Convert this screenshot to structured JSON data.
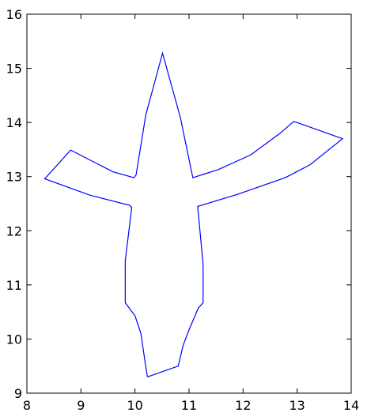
{
  "chart_data": {
    "type": "line",
    "title": "",
    "xlabel": "",
    "ylabel": "",
    "xlim": [
      8,
      14
    ],
    "ylim": [
      9,
      16
    ],
    "xticks": [
      "8",
      "9",
      "10",
      "11",
      "12",
      "13",
      "14"
    ],
    "yticks": [
      "9",
      "10",
      "11",
      "12",
      "13",
      "14",
      "15",
      "16"
    ],
    "grid": false,
    "series": [
      {
        "color": "#0000ff",
        "closed": true,
        "points": [
          [
            10.23,
            9.3
          ],
          [
            10.18,
            9.62
          ],
          [
            10.11,
            10.1
          ],
          [
            10.0,
            10.43
          ],
          [
            9.82,
            10.67
          ],
          [
            9.82,
            11.45
          ],
          [
            9.94,
            12.43
          ],
          [
            9.9,
            12.47
          ],
          [
            9.16,
            12.66
          ],
          [
            8.33,
            12.96
          ],
          [
            8.81,
            13.49
          ],
          [
            9.59,
            13.09
          ],
          [
            9.98,
            12.98
          ],
          [
            10.02,
            13.03
          ],
          [
            10.2,
            14.14
          ],
          [
            10.51,
            15.28
          ],
          [
            10.84,
            14.09
          ],
          [
            11.07,
            12.98
          ],
          [
            11.54,
            13.13
          ],
          [
            12.14,
            13.4
          ],
          [
            12.67,
            13.79
          ],
          [
            12.94,
            14.02
          ],
          [
            13.84,
            13.7
          ],
          [
            13.24,
            13.22
          ],
          [
            12.78,
            12.98
          ],
          [
            11.89,
            12.67
          ],
          [
            11.16,
            12.45
          ],
          [
            11.26,
            11.38
          ],
          [
            11.26,
            10.67
          ],
          [
            11.17,
            10.57
          ],
          [
            11.0,
            10.17
          ],
          [
            10.89,
            9.88
          ],
          [
            10.8,
            9.5
          ],
          [
            10.23,
            9.3
          ]
        ]
      }
    ]
  }
}
